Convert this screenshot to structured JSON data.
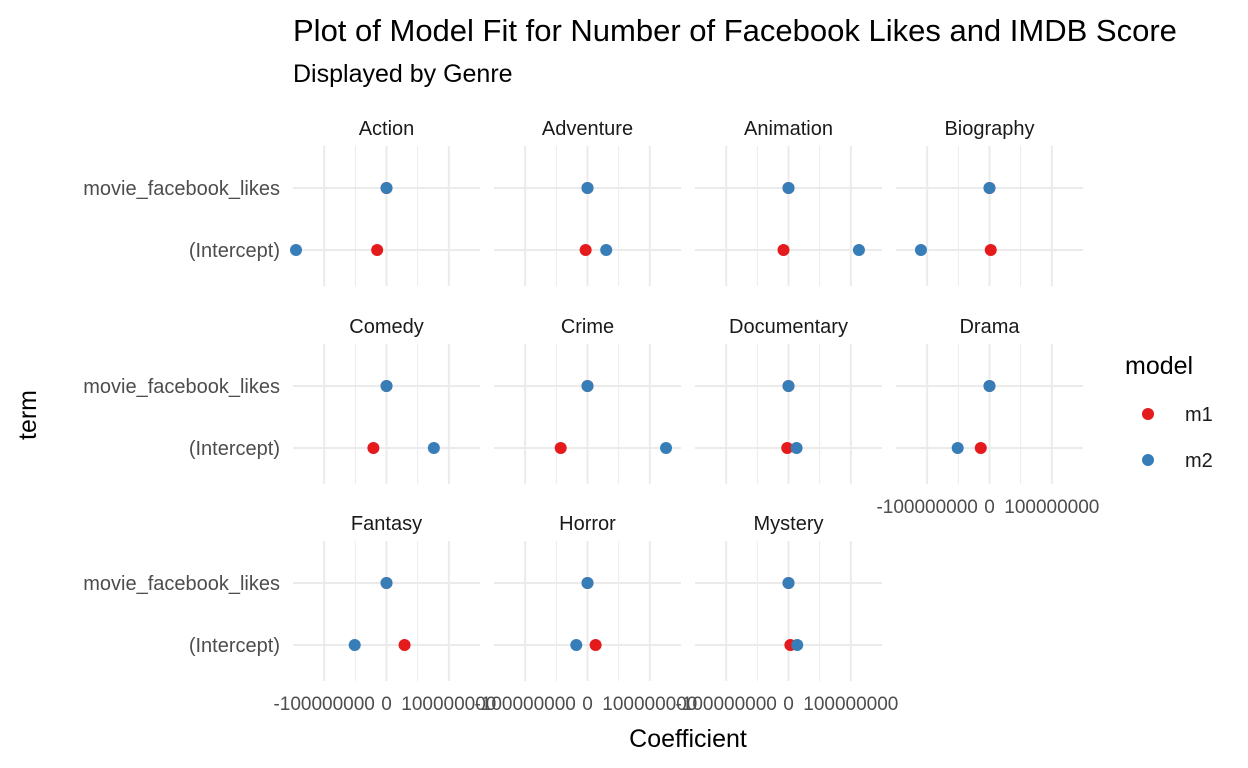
{
  "chart_data": {
    "type": "scatter",
    "title": "Plot of Model Fit for Number of Facebook Likes and IMDB Score",
    "subtitle": "Displayed by Genre",
    "xlabel": "Coefficient",
    "ylabel": "term",
    "xlim": [
      -150000000,
      150000000
    ],
    "x_ticks": [
      -100000000,
      0,
      100000000
    ],
    "x_tick_labels": [
      "-100000000",
      "0",
      "100000000"
    ],
    "terms": [
      "movie_facebook_likes",
      "(Intercept)"
    ],
    "grid": true,
    "legend": {
      "title": "model",
      "position": "right",
      "entries": [
        {
          "name": "m1",
          "color": "#e41a1c"
        },
        {
          "name": "m2",
          "color": "#377eb8"
        }
      ]
    },
    "facets": [
      {
        "genre": "Action",
        "points": [
          {
            "model": "m1",
            "term": "movie_facebook_likes",
            "x": 0
          },
          {
            "model": "m2",
            "term": "movie_facebook_likes",
            "x": 0
          },
          {
            "model": "m1",
            "term": "(Intercept)",
            "x": -15000000
          },
          {
            "model": "m2",
            "term": "(Intercept)",
            "x": -165000000
          }
        ]
      },
      {
        "genre": "Adventure",
        "points": [
          {
            "model": "m1",
            "term": "movie_facebook_likes",
            "x": 0
          },
          {
            "model": "m2",
            "term": "movie_facebook_likes",
            "x": 0
          },
          {
            "model": "m1",
            "term": "(Intercept)",
            "x": -3000000
          },
          {
            "model": "m2",
            "term": "(Intercept)",
            "x": 30000000
          }
        ]
      },
      {
        "genre": "Animation",
        "points": [
          {
            "model": "m1",
            "term": "movie_facebook_likes",
            "x": 0
          },
          {
            "model": "m2",
            "term": "movie_facebook_likes",
            "x": 0
          },
          {
            "model": "m1",
            "term": "(Intercept)",
            "x": -8000000
          },
          {
            "model": "m2",
            "term": "(Intercept)",
            "x": 113000000
          }
        ]
      },
      {
        "genre": "Biography",
        "points": [
          {
            "model": "m1",
            "term": "movie_facebook_likes",
            "x": 0
          },
          {
            "model": "m2",
            "term": "movie_facebook_likes",
            "x": 0
          },
          {
            "model": "m1",
            "term": "(Intercept)",
            "x": 2000000
          },
          {
            "model": "m2",
            "term": "(Intercept)",
            "x": -110000000
          }
        ]
      },
      {
        "genre": "Comedy",
        "points": [
          {
            "model": "m1",
            "term": "movie_facebook_likes",
            "x": 0
          },
          {
            "model": "m2",
            "term": "movie_facebook_likes",
            "x": 0
          },
          {
            "model": "m1",
            "term": "(Intercept)",
            "x": -21000000
          },
          {
            "model": "m2",
            "term": "(Intercept)",
            "x": 76000000
          }
        ]
      },
      {
        "genre": "Crime",
        "points": [
          {
            "model": "m1",
            "term": "movie_facebook_likes",
            "x": 0
          },
          {
            "model": "m2",
            "term": "movie_facebook_likes",
            "x": 0
          },
          {
            "model": "m1",
            "term": "(Intercept)",
            "x": -43000000
          },
          {
            "model": "m2",
            "term": "(Intercept)",
            "x": 126000000
          }
        ]
      },
      {
        "genre": "Documentary",
        "points": [
          {
            "model": "m1",
            "term": "movie_facebook_likes",
            "x": 0
          },
          {
            "model": "m2",
            "term": "movie_facebook_likes",
            "x": 0
          },
          {
            "model": "m1",
            "term": "(Intercept)",
            "x": -2000000
          },
          {
            "model": "m2",
            "term": "(Intercept)",
            "x": 13000000
          }
        ]
      },
      {
        "genre": "Drama",
        "points": [
          {
            "model": "m1",
            "term": "movie_facebook_likes",
            "x": 0
          },
          {
            "model": "m2",
            "term": "movie_facebook_likes",
            "x": 0
          },
          {
            "model": "m1",
            "term": "(Intercept)",
            "x": -14000000
          },
          {
            "model": "m2",
            "term": "(Intercept)",
            "x": -51000000
          }
        ]
      },
      {
        "genre": "Fantasy",
        "points": [
          {
            "model": "m1",
            "term": "movie_facebook_likes",
            "x": 0
          },
          {
            "model": "m2",
            "term": "movie_facebook_likes",
            "x": 0
          },
          {
            "model": "m1",
            "term": "(Intercept)",
            "x": 29000000
          },
          {
            "model": "m2",
            "term": "(Intercept)",
            "x": -51000000
          }
        ]
      },
      {
        "genre": "Horror",
        "points": [
          {
            "model": "m1",
            "term": "movie_facebook_likes",
            "x": 0
          },
          {
            "model": "m2",
            "term": "movie_facebook_likes",
            "x": 0
          },
          {
            "model": "m1",
            "term": "(Intercept)",
            "x": 13000000
          },
          {
            "model": "m2",
            "term": "(Intercept)",
            "x": -18000000
          }
        ]
      },
      {
        "genre": "Mystery",
        "points": [
          {
            "model": "m1",
            "term": "movie_facebook_likes",
            "x": 0
          },
          {
            "model": "m2",
            "term": "movie_facebook_likes",
            "x": 0
          },
          {
            "model": "m1",
            "term": "(Intercept)",
            "x": 3000000
          },
          {
            "model": "m2",
            "term": "(Intercept)",
            "x": 14000000
          }
        ]
      }
    ]
  }
}
